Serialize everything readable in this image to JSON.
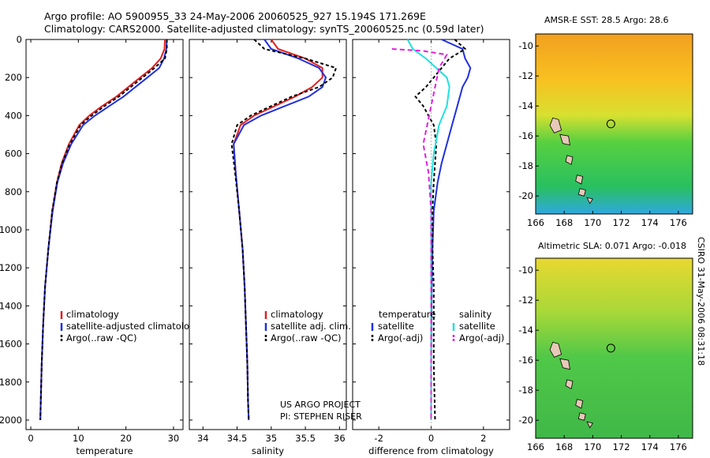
{
  "header": {
    "line1": "Argo profile: AO 5900955_33 24-May-2006 20060525_927 15.194S 171.269E",
    "line2": "Climatology: CARS2000. Satellite-adjusted climatology: synTS_20060525.nc (0.59d later)"
  },
  "credits": {
    "project": "US ARGO PROJECT",
    "pi": "PI: STEPHEN RISER",
    "stamp": "CSIRO 31-May-2006 08:31:18"
  },
  "colors": {
    "climatology": "#e02020",
    "satellite": "#2030e0",
    "argo": "#000000",
    "sat_sal": "#20e0e0",
    "argo_sal_adj": "#e020e0"
  },
  "chart_data": [
    {
      "type": "line",
      "xlabel": "temperature",
      "ylabel": "",
      "xlim": [
        -1,
        32
      ],
      "ylim": [
        2050,
        0
      ],
      "xticks": [
        0,
        10,
        20,
        30
      ],
      "yticks": [
        0,
        200,
        400,
        600,
        800,
        1000,
        1200,
        1400,
        1600,
        1800,
        2000
      ],
      "legend": [
        "climatology",
        "satellite-adjusted climatology",
        "Argo(..raw -QC)"
      ],
      "series": [
        {
          "name": "climatology",
          "color": "#e02020",
          "dash": "",
          "x": [
            28.2,
            28.1,
            27.3,
            25.5,
            23,
            20.5,
            18,
            15,
            12.3,
            10.2,
            8,
            6.5,
            5.5,
            4.5,
            3.7,
            3,
            2.6,
            2.3,
            2.1,
            2.0
          ],
          "y": [
            0,
            50,
            100,
            150,
            200,
            250,
            300,
            350,
            400,
            450,
            550,
            650,
            750,
            900,
            1100,
            1300,
            1500,
            1700,
            1900,
            2000
          ]
        },
        {
          "name": "satellite-adjusted climatology",
          "color": "#2030e0",
          "dash": "",
          "x": [
            28.6,
            28.5,
            28,
            27,
            24.5,
            22,
            19.5,
            16.5,
            13.5,
            11,
            8.5,
            6.8,
            5.6,
            4.6,
            3.7,
            3,
            2.6,
            2.3,
            2.1,
            2.0
          ],
          "y": [
            0,
            50,
            100,
            150,
            200,
            250,
            300,
            350,
            400,
            450,
            550,
            650,
            750,
            900,
            1100,
            1300,
            1500,
            1700,
            1900,
            2000
          ]
        },
        {
          "name": "Argo(..raw -QC)",
          "color": "#000000",
          "dash": "4,3",
          "x": [
            28.6,
            28.6,
            28.2,
            26,
            23.5,
            21,
            18.5,
            15.5,
            12.8,
            10.5,
            8.2,
            6.6,
            5.5,
            4.5,
            3.7,
            3,
            2.6,
            2.3,
            2.1,
            2.0
          ],
          "y": [
            0,
            50,
            100,
            150,
            200,
            250,
            300,
            350,
            400,
            450,
            550,
            650,
            750,
            900,
            1100,
            1300,
            1500,
            1700,
            1900,
            2000
          ]
        }
      ]
    },
    {
      "type": "line",
      "xlabel": "salinity",
      "ylabel": "",
      "xlim": [
        33.8,
        36.1
      ],
      "ylim": [
        2050,
        0
      ],
      "xticks": [
        34,
        34.5,
        35,
        35.5,
        36
      ],
      "yticks": [
        0,
        200,
        400,
        600,
        800,
        1000,
        1200,
        1400,
        1600,
        1800,
        2000
      ],
      "legend": [
        "climatology",
        "satellite adj. clim.",
        "Argo(..raw -QC)"
      ],
      "series": [
        {
          "name": "climatology",
          "color": "#e02020",
          "dash": "",
          "x": [
            35.0,
            35.1,
            35.5,
            35.75,
            35.75,
            35.6,
            35.35,
            35.05,
            34.75,
            34.55,
            34.45,
            34.48,
            34.53,
            34.58,
            34.61,
            34.63,
            34.65,
            34.66,
            34.67
          ],
          "y": [
            0,
            50,
            100,
            150,
            200,
            250,
            300,
            350,
            400,
            450,
            550,
            700,
            900,
            1100,
            1300,
            1500,
            1700,
            1900,
            2000
          ]
        },
        {
          "name": "satellite adj. clim.",
          "color": "#2030e0",
          "dash": "",
          "x": [
            34.9,
            35.0,
            35.4,
            35.7,
            35.8,
            35.75,
            35.55,
            35.2,
            34.85,
            34.6,
            34.45,
            34.48,
            34.53,
            34.58,
            34.61,
            34.63,
            34.65,
            34.66,
            34.67
          ],
          "y": [
            0,
            50,
            100,
            150,
            200,
            250,
            300,
            350,
            400,
            450,
            550,
            700,
            900,
            1100,
            1300,
            1500,
            1700,
            1900,
            2000
          ]
        },
        {
          "name": "Argo(..raw -QC)",
          "color": "#000000",
          "dash": "4,3",
          "x": [
            34.75,
            34.9,
            35.5,
            35.95,
            35.9,
            35.7,
            35.3,
            35.0,
            34.7,
            34.5,
            34.42,
            34.47,
            34.53,
            34.58,
            34.61,
            34.63,
            34.65,
            34.66,
            34.67
          ],
          "y": [
            0,
            50,
            100,
            150,
            200,
            250,
            300,
            350,
            400,
            450,
            550,
            700,
            900,
            1100,
            1300,
            1500,
            1700,
            1900,
            2000
          ]
        }
      ]
    },
    {
      "type": "line",
      "xlabel": "difference from climatology",
      "ylabel": "",
      "xlim": [
        -3,
        3
      ],
      "ylim": [
        2050,
        0
      ],
      "xticks": [
        -2,
        0,
        2
      ],
      "yticks": [
        0,
        200,
        400,
        600,
        800,
        1000,
        1200,
        1400,
        1600,
        1800,
        2000
      ],
      "legend_titles": [
        "temperature",
        "salinity"
      ],
      "legend": [
        "satellite",
        "Argo(-adj)",
        "satellite",
        "Argo(-adj)"
      ],
      "series": [
        {
          "name": "satellite",
          "group": "temperature",
          "color": "#2030e0",
          "dash": "",
          "x": [
            0.4,
            1.2,
            1.3,
            1.5,
            1.4,
            1.2,
            1.0,
            0.8,
            0.6,
            0.4,
            0.25,
            0.1,
            0.05,
            0.02,
            0.01,
            0.0,
            0.0
          ],
          "y": [
            0,
            50,
            100,
            150,
            200,
            250,
            350,
            450,
            550,
            650,
            750,
            900,
            1100,
            1300,
            1500,
            1700,
            2000
          ]
        },
        {
          "name": "Argo(-adj)",
          "group": "temperature",
          "color": "#000000",
          "dash": "4,3",
          "x": [
            0.9,
            1.3,
            0.7,
            0.4,
            -0.2,
            -0.6,
            -0.3,
            0.1,
            0.2,
            0.15,
            0.1,
            0.05,
            0.05,
            0.1,
            0.1,
            0.1,
            0.15
          ],
          "y": [
            0,
            50,
            100,
            150,
            250,
            300,
            350,
            450,
            550,
            650,
            750,
            900,
            1100,
            1300,
            1500,
            1700,
            2000
          ]
        },
        {
          "name": "satellite",
          "group": "salinity",
          "color": "#20e0e0",
          "dash": "",
          "x": [
            -0.9,
            -0.7,
            -0.2,
            0.2,
            0.6,
            0.7,
            0.6,
            0.3,
            0.1,
            0.0,
            0.0,
            0.0,
            0.0,
            0.0
          ],
          "y": [
            0,
            50,
            100,
            150,
            200,
            250,
            350,
            450,
            600,
            750,
            900,
            1200,
            1600,
            2000
          ]
        },
        {
          "name": "Argo(-adj)",
          "group": "salinity",
          "color": "#e020e0",
          "dash": "6,4",
          "x": [
            -1.5,
            -0.3,
            0.6,
            0.3,
            0.0,
            -0.3,
            -0.1,
            0.0,
            0.0,
            0.0,
            0.0,
            0.0
          ],
          "y": [
            50,
            60,
            80,
            150,
            350,
            550,
            700,
            900,
            1200,
            1500,
            1800,
            2000
          ]
        }
      ]
    },
    {
      "type": "heatmap",
      "title": "AMSR-E SST: 28.5 Argo: 28.6",
      "xlim": [
        166,
        177
      ],
      "ylim": [
        -21.2,
        -9.2
      ],
      "xticks": [
        166,
        168,
        170,
        172,
        174,
        176
      ],
      "yticks": [
        -10,
        -12,
        -14,
        -16,
        -18,
        -20
      ],
      "marker": {
        "lon": 171.269,
        "lat": -15.194
      }
    },
    {
      "type": "heatmap",
      "title": "Altimetric SLA: 0.071 Argo: -0.018",
      "xlim": [
        166,
        177
      ],
      "ylim": [
        -21.2,
        -9.2
      ],
      "xticks": [
        166,
        168,
        170,
        172,
        174,
        176
      ],
      "yticks": [
        -10,
        -12,
        -14,
        -16,
        -18,
        -20
      ],
      "marker": {
        "lon": 171.269,
        "lat": -15.194
      }
    }
  ]
}
